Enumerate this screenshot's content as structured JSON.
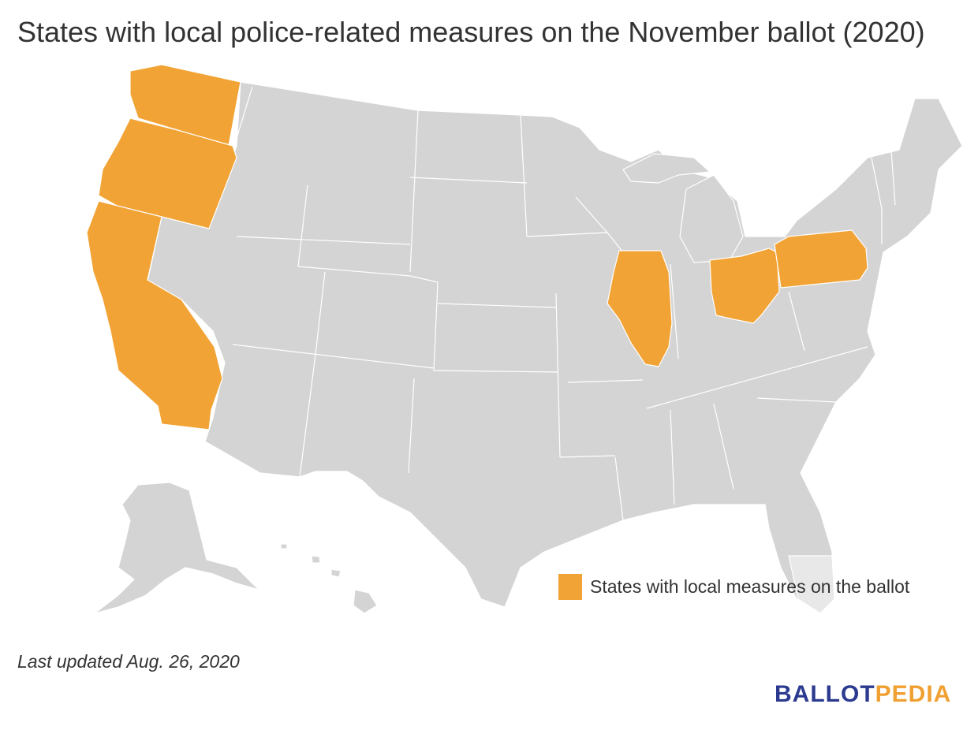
{
  "title": "States with local police-related measures on the November ballot (2020)",
  "colors": {
    "highlight": "#f2a335",
    "default": "#d4d4d4",
    "border": "#ffffff",
    "brand_blue": "#2b3a8f",
    "brand_orange": "#f0a030"
  },
  "highlighted_states": [
    "Washington",
    "Oregon",
    "California",
    "Illinois",
    "Ohio",
    "Pennsylvania"
  ],
  "legend": {
    "label": "States with local measures on the ballot"
  },
  "footnote": "Last updated Aug. 26, 2020",
  "brand": {
    "part1": "BALLOT",
    "part2": "PEDIA"
  }
}
